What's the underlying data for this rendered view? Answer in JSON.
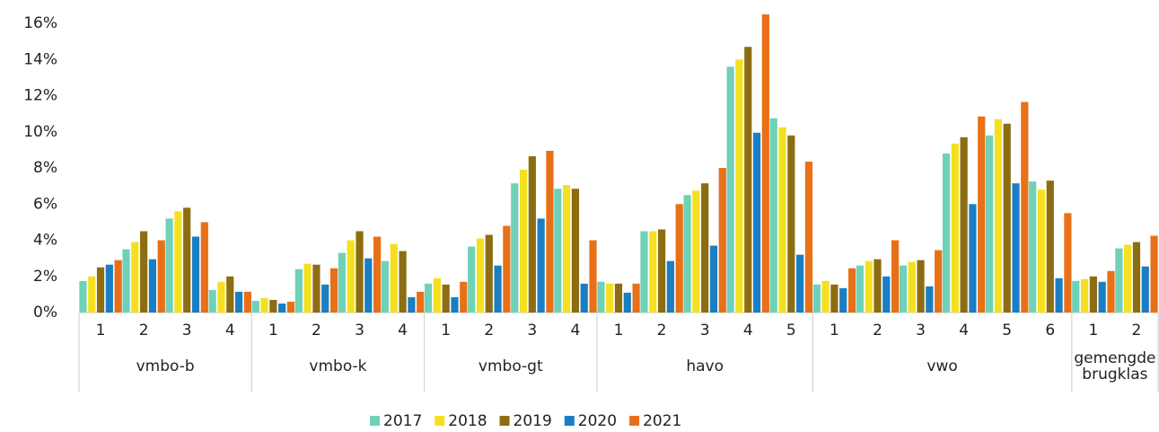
{
  "chart_data": {
    "type": "bar",
    "groups": [
      {
        "name": "vmbo-b",
        "categories": [
          "1",
          "2",
          "3",
          "4"
        ]
      },
      {
        "name": "vmbo-k",
        "categories": [
          "1",
          "2",
          "3",
          "4"
        ]
      },
      {
        "name": "vmbo-gt",
        "categories": [
          "1",
          "2",
          "3",
          "4"
        ]
      },
      {
        "name": "havo",
        "categories": [
          "1",
          "2",
          "3",
          "4",
          "5"
        ]
      },
      {
        "name": "vwo",
        "categories": [
          "1",
          "2",
          "3",
          "4",
          "5",
          "6"
        ]
      },
      {
        "name": "gemengde brugklas",
        "categories": [
          "1",
          "2"
        ]
      }
    ],
    "series": [
      {
        "name": "2017",
        "color": "#6fd1b8",
        "values": [
          1.74,
          3.5,
          5.2,
          1.25,
          0.65,
          2.4,
          3.3,
          2.85,
          1.6,
          3.65,
          7.15,
          6.85,
          1.7,
          4.5,
          6.5,
          13.6,
          10.75,
          1.55,
          2.6,
          2.6,
          8.8,
          9.8,
          7.25,
          1.75,
          3.55
        ]
      },
      {
        "name": "2018",
        "color": "#f4e020",
        "values": [
          2.0,
          3.9,
          5.6,
          1.7,
          0.8,
          2.7,
          4.0,
          3.8,
          1.9,
          4.1,
          7.9,
          7.05,
          1.6,
          4.5,
          6.75,
          14.0,
          10.25,
          1.75,
          2.85,
          2.8,
          9.35,
          10.7,
          6.8,
          1.85,
          3.75
        ]
      },
      {
        "name": "2019",
        "color": "#8c6d12",
        "values": [
          2.5,
          4.5,
          5.8,
          2.0,
          0.7,
          2.65,
          4.5,
          3.4,
          1.55,
          4.3,
          8.65,
          6.85,
          1.6,
          4.6,
          7.15,
          14.7,
          9.8,
          1.55,
          2.95,
          2.9,
          9.7,
          10.45,
          7.3,
          2.0,
          3.9
        ]
      },
      {
        "name": "2020",
        "color": "#1a7ec4",
        "values": [
          2.65,
          2.95,
          4.2,
          1.15,
          0.5,
          1.55,
          3.0,
          0.85,
          0.85,
          2.6,
          5.2,
          1.6,
          1.1,
          2.85,
          3.7,
          9.95,
          3.2,
          1.35,
          2.0,
          1.45,
          6.0,
          7.15,
          1.9,
          1.7,
          2.55
        ]
      },
      {
        "name": "2021",
        "color": "#e87018",
        "values": [
          2.9,
          4.0,
          5.0,
          1.15,
          0.6,
          2.45,
          4.2,
          1.15,
          1.7,
          4.8,
          8.95,
          4.0,
          1.6,
          6.0,
          8.0,
          16.5,
          8.35,
          2.45,
          4.0,
          3.45,
          10.85,
          11.65,
          5.5,
          2.3,
          4.25
        ]
      }
    ],
    "ylim": [
      0,
      16.5
    ],
    "yticks": [
      {
        "value": 0,
        "label": "0%"
      },
      {
        "value": 2,
        "label": "2%"
      },
      {
        "value": 4,
        "label": "4%"
      },
      {
        "value": 6,
        "label": "6%"
      },
      {
        "value": 8,
        "label": "8%"
      },
      {
        "value": 10,
        "label": "10%"
      },
      {
        "value": 12,
        "label": "12%"
      },
      {
        "value": 14,
        "label": "14%"
      },
      {
        "value": 16,
        "label": "16%"
      }
    ],
    "grid": false
  }
}
